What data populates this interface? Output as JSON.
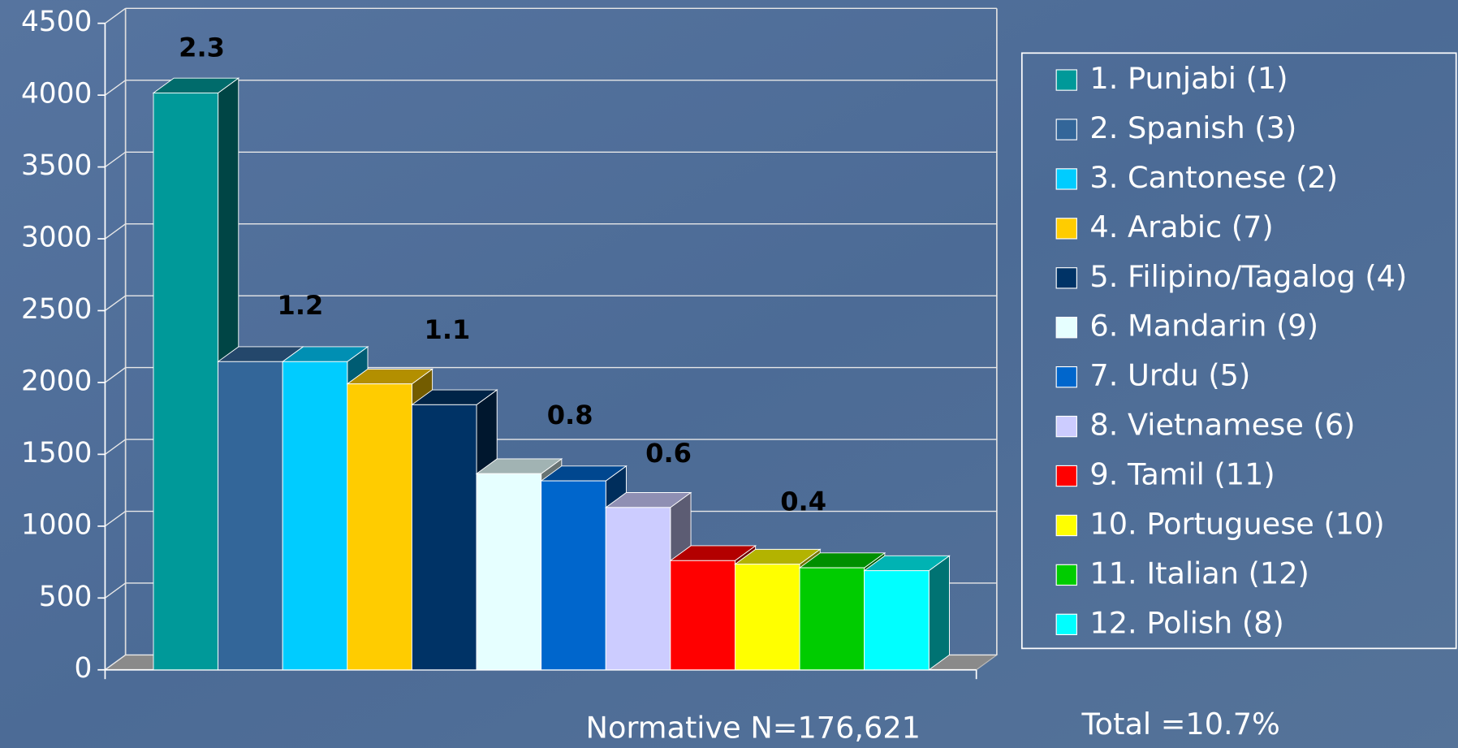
{
  "chart_data": {
    "type": "bar",
    "categories": [
      null
    ],
    "series": [
      {
        "name": "1. Punjabi (1)",
        "color": "#009999",
        "values": [
          4015
        ]
      },
      {
        "name": "2. Spanish (3)",
        "color": "#336699",
        "values": [
          2145
        ]
      },
      {
        "name": "3. Cantonese (2)",
        "color": "#00ccff",
        "values": [
          2145
        ]
      },
      {
        "name": "4. Arabic (7)",
        "color": "#ffcc00",
        "values": [
          1990
        ]
      },
      {
        "name": "5. Filipino/Tagalog (4)",
        "color": "#003366",
        "values": [
          1845
        ]
      },
      {
        "name": "6. Mandarin (9)",
        "color": "#e6ffff",
        "values": [
          1365
        ]
      },
      {
        "name": "7. Urdu (5)",
        "color": "#0066cc",
        "values": [
          1315
        ]
      },
      {
        "name": "8. Vietnamese (6)",
        "color": "#ccccff",
        "values": [
          1130
        ]
      },
      {
        "name": "9. Tamil (11)",
        "color": "#ff0000",
        "values": [
          760
        ]
      },
      {
        "name": "10. Portuguese (10)",
        "color": "#ffff00",
        "values": [
          735
        ]
      },
      {
        "name": "11. Italian (12)",
        "color": "#00cc00",
        "values": [
          710
        ]
      },
      {
        "name": "12. Polish (8)",
        "color": "#00ffff",
        "values": [
          690
        ]
      }
    ],
    "annotations": [
      "2.3",
      "1.2",
      "1.1",
      "0.8",
      "0.6",
      "0.4"
    ],
    "footnotes": [
      "Normative N=176,621",
      "Total =10.7%"
    ],
    "ylim": [
      0,
      4500
    ],
    "yticks": [
      0,
      500,
      1000,
      1500,
      2000,
      2500,
      3000,
      3500,
      4000,
      4500
    ],
    "grid": true,
    "legend": "right"
  }
}
